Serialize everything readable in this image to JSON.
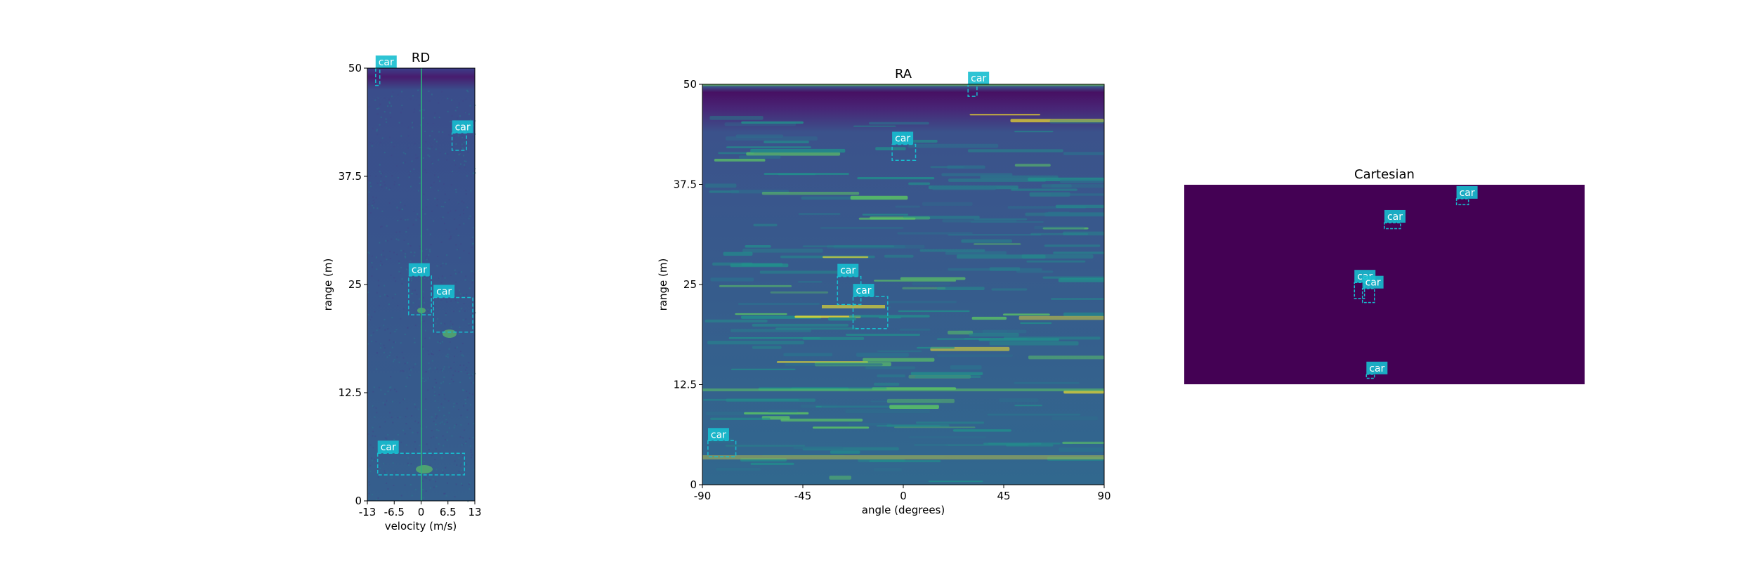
{
  "chart_data": [
    {
      "type": "heatmap",
      "title": "RD",
      "xlabel": "velocity (m/s)",
      "ylabel": "range (m)",
      "xlim": [
        -13,
        13
      ],
      "ylim": [
        0,
        50
      ],
      "xticks": [
        -13,
        -6.5,
        0,
        6.5,
        13
      ],
      "xtick_labels": [
        "-13",
        "-6.5",
        "0",
        "6.5",
        "13"
      ],
      "yticks": [
        0,
        12.5,
        25,
        37.5,
        50
      ],
      "ytick_labels": [
        "0",
        "12.5",
        "25",
        "37.5",
        "50"
      ],
      "colormap": "viridis",
      "detections": [
        {
          "label": "car",
          "x0": -11,
          "x1": -10,
          "y0": 48,
          "y1": 50
        },
        {
          "label": "car",
          "x0": 7.5,
          "x1": 11,
          "y0": 40.5,
          "y1": 42.5
        },
        {
          "label": "car",
          "x0": -3,
          "x1": 2.5,
          "y0": 21.5,
          "y1": 26
        },
        {
          "label": "car",
          "x0": 3,
          "x1": 12.5,
          "y0": 19.5,
          "y1": 23.5
        },
        {
          "label": "car",
          "x0": -10.5,
          "x1": 10.5,
          "y0": 3,
          "y1": 5.5
        }
      ]
    },
    {
      "type": "heatmap",
      "title": "RA",
      "xlabel": "angle (degrees)",
      "ylabel": "range (m)",
      "xlim": [
        -90,
        90
      ],
      "ylim": [
        0,
        50
      ],
      "xticks": [
        -90,
        -45,
        0,
        45,
        90
      ],
      "xtick_labels": [
        "-90",
        "-45",
        "0",
        "45",
        "90"
      ],
      "yticks": [
        0,
        12.5,
        25,
        37.5,
        50
      ],
      "ytick_labels": [
        "0",
        "12.5",
        "25",
        "37.5",
        "50"
      ],
      "colormap": "viridis",
      "detections": [
        {
          "label": "car",
          "x0": 29,
          "x1": 33,
          "y0": 48.5,
          "y1": 50
        },
        {
          "label": "car",
          "x0": -5,
          "x1": 5.5,
          "y0": 40.5,
          "y1": 42.5
        },
        {
          "label": "car",
          "x0": -29.5,
          "x1": -19,
          "y0": 22.5,
          "y1": 26
        },
        {
          "label": "car",
          "x0": -22.5,
          "x1": -7,
          "y0": 19.5,
          "y1": 23.5
        },
        {
          "label": "car",
          "x0": -87.5,
          "x1": -75,
          "y0": 3.5,
          "y1": 5.5
        }
      ]
    },
    {
      "type": "heatmap",
      "title": "Cartesian",
      "background": "#440154",
      "detections": [
        {
          "label": "car",
          "u": 0.68,
          "v": 0.07,
          "w": 0.03,
          "h": 0.03
        },
        {
          "label": "car",
          "u": 0.5,
          "v": 0.19,
          "w": 0.04,
          "h": 0.03
        },
        {
          "label": "car",
          "u": 0.425,
          "v": 0.49,
          "w": 0.025,
          "h": 0.08
        },
        {
          "label": "car",
          "u": 0.445,
          "v": 0.52,
          "w": 0.03,
          "h": 0.07
        },
        {
          "label": "car",
          "u": 0.455,
          "v": 0.95,
          "w": 0.02,
          "h": 0.02
        }
      ]
    }
  ],
  "colors": {
    "box": "#17becf",
    "label_bg": "#17becf",
    "label_text": "#ffffff",
    "bg_deep": "#440154",
    "bg_mid": "#3b528b",
    "bg_teal": "#21918c",
    "bright": "#5ec962",
    "peak": "#fde725"
  }
}
